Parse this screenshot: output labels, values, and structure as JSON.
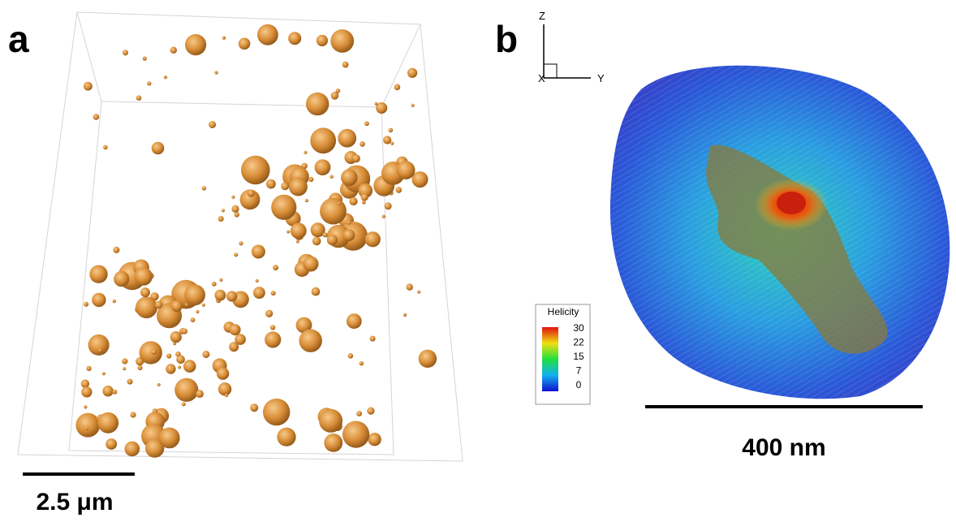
{
  "panel_a": {
    "label": "a",
    "scale_bar": "2.5 μm"
  },
  "panel_b": {
    "label": "b",
    "scale_bar": "400 nm",
    "axes": {
      "z": "Z",
      "y": "Y",
      "x": "X"
    },
    "colorbar": {
      "title": "Helicity",
      "ticks": [
        30,
        22,
        15,
        7,
        0
      ]
    }
  }
}
